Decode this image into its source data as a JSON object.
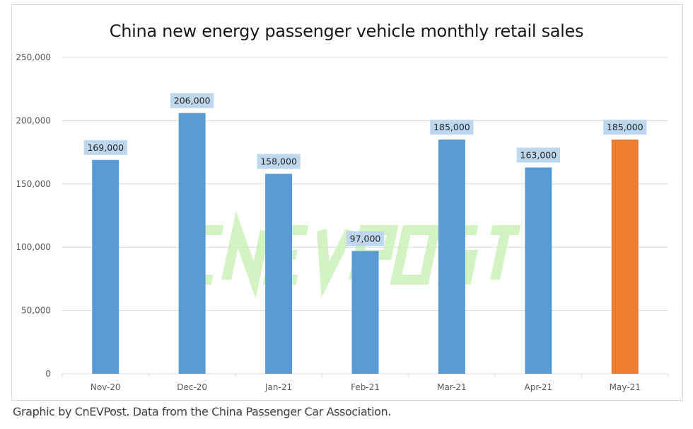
{
  "chart_data": {
    "type": "bar",
    "title": "China new energy passenger vehicle monthly retail sales",
    "categories": [
      "Nov-20",
      "Dec-20",
      "Jan-21",
      "Feb-21",
      "Mar-21",
      "Apr-21",
      "May-21"
    ],
    "values": [
      169000,
      206000,
      158000,
      97000,
      185000,
      163000,
      185000
    ],
    "data_labels": [
      "169,000",
      "206,000",
      "158,000",
      "97,000",
      "185,000",
      "163,000",
      "185,000"
    ],
    "colors": [
      "#5b9bd5",
      "#5b9bd5",
      "#5b9bd5",
      "#5b9bd5",
      "#5b9bd5",
      "#5b9bd5",
      "#ed7d31"
    ],
    "label_box_color": "#bdd7ee",
    "ylim": [
      0,
      250000
    ],
    "yticks": [
      0,
      50000,
      100000,
      150000,
      200000,
      250000
    ],
    "ytick_labels": [
      "0",
      "50,000",
      "100,000",
      "150,000",
      "200,000",
      "250,000"
    ],
    "grid": true,
    "legend": "none",
    "xlabel": "",
    "ylabel": ""
  },
  "watermark": "CnEVPost",
  "source": "Graphic by CnEVPost. Data from the China Passenger Car Association."
}
